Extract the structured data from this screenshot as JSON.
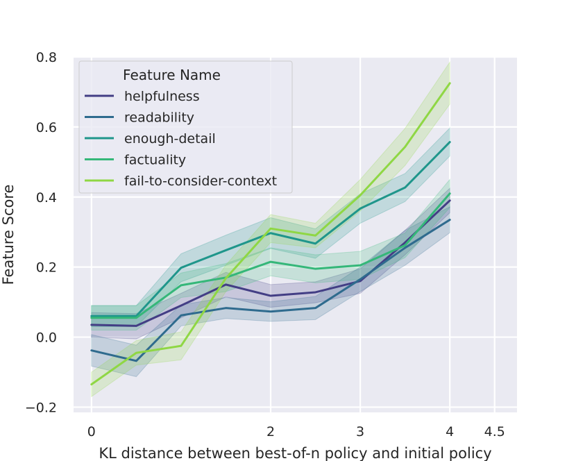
{
  "chart_data": {
    "type": "line",
    "title": "",
    "xlabel": "KL distance between best-of-n policy and initial policy",
    "ylabel": "Feature Score",
    "xlim": [
      -0.2,
      4.75
    ],
    "ylim": [
      -0.215,
      0.8
    ],
    "x_ticks": [
      0,
      2,
      3,
      4,
      4.5
    ],
    "x_tick_labels": [
      "0",
      "2",
      "3",
      "4",
      "4.5"
    ],
    "y_ticks": [
      -0.2,
      0.0,
      0.2,
      0.4,
      0.6,
      0.8
    ],
    "y_tick_labels": [
      "−0.2",
      "0.0",
      "0.2",
      "0.4",
      "0.6",
      "0.8"
    ],
    "grid": true,
    "legend": {
      "title": "Feature Name",
      "placement": "top-left"
    },
    "x": [
      0,
      0.5,
      1.0,
      1.5,
      2.0,
      2.5,
      3.0,
      3.5,
      4.0
    ],
    "series": [
      {
        "name": "helpfulness",
        "color": "#433e85",
        "values": [
          0.035,
          0.032,
          0.09,
          0.15,
          0.118,
          0.128,
          0.16,
          0.27,
          0.39
        ],
        "lower": [
          0.0,
          -0.005,
          0.055,
          0.115,
          0.085,
          0.098,
          0.125,
          0.235,
          0.355
        ],
        "upper": [
          0.07,
          0.067,
          0.125,
          0.185,
          0.15,
          0.158,
          0.195,
          0.305,
          0.425
        ]
      },
      {
        "name": "readability",
        "color": "#2f6b8e",
        "values": [
          -0.038,
          -0.068,
          0.062,
          0.083,
          0.073,
          0.083,
          0.165,
          0.255,
          0.335
        ],
        "lower": [
          -0.083,
          -0.113,
          0.032,
          0.053,
          0.045,
          0.05,
          0.13,
          0.205,
          0.298
        ],
        "upper": [
          0.007,
          -0.023,
          0.092,
          0.113,
          0.101,
          0.116,
          0.2,
          0.305,
          0.372
        ]
      },
      {
        "name": "enough-detail",
        "color": "#1f968b",
        "values": [
          0.06,
          0.06,
          0.198,
          0.248,
          0.297,
          0.267,
          0.367,
          0.427,
          0.557
        ],
        "lower": [
          0.03,
          0.03,
          0.158,
          0.205,
          0.253,
          0.225,
          0.325,
          0.387,
          0.517
        ],
        "upper": [
          0.09,
          0.09,
          0.238,
          0.291,
          0.341,
          0.309,
          0.409,
          0.467,
          0.597
        ]
      },
      {
        "name": "factuality",
        "color": "#35b779",
        "values": [
          0.055,
          0.055,
          0.148,
          0.17,
          0.215,
          0.195,
          0.205,
          0.262,
          0.41
        ],
        "lower": [
          0.02,
          0.02,
          0.113,
          0.13,
          0.175,
          0.155,
          0.165,
          0.227,
          0.37
        ],
        "upper": [
          0.09,
          0.09,
          0.183,
          0.21,
          0.255,
          0.235,
          0.245,
          0.297,
          0.45
        ]
      },
      {
        "name": "fail-to-consider-context",
        "color": "#8fd744",
        "values": [
          -0.135,
          -0.045,
          -0.025,
          0.168,
          0.31,
          0.29,
          0.405,
          0.543,
          0.725
        ],
        "lower": [
          -0.17,
          -0.08,
          -0.065,
          0.13,
          0.27,
          0.255,
          0.36,
          0.49,
          0.665
        ],
        "upper": [
          -0.1,
          -0.01,
          0.015,
          0.206,
          0.35,
          0.325,
          0.45,
          0.596,
          0.785
        ]
      }
    ]
  }
}
